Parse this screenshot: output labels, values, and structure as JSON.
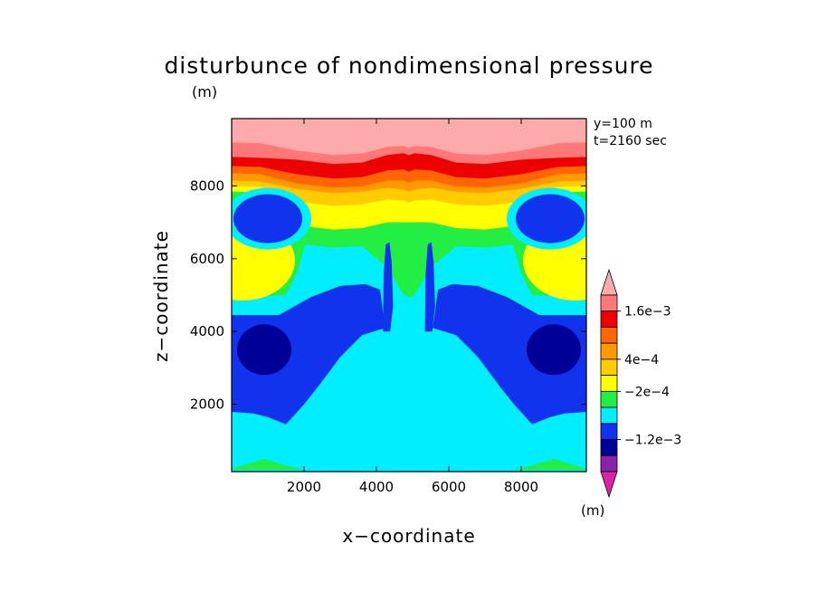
{
  "chart_data": {
    "type": "heatmap",
    "title": "disturbunce of nondimensional pressure",
    "xlabel": "x−coordinate",
    "ylabel": "z−coordinate",
    "y_unit": "(m)",
    "info": [
      "y=100 m",
      "t=2160 sec"
    ],
    "xlim": [
      0,
      9800
    ],
    "ylim": [
      150,
      9850
    ],
    "x_ticks": [
      2000,
      4000,
      6000,
      8000
    ],
    "y_ticks": [
      2000,
      4000,
      6000,
      8000
    ],
    "x_tick_labels": [
      "2000",
      "4000",
      "6000",
      "8000"
    ],
    "y_tick_labels": [
      "2000",
      "4000",
      "6000",
      "8000"
    ],
    "colorbar": {
      "unit": "(m)",
      "levels": [
        -0.0016,
        -0.0012,
        -0.0008,
        -0.0004,
        -0.0002,
        0,
        0.0004,
        0.0008,
        0.0012,
        0.0016,
        0.002
      ],
      "colors": [
        "#dd22aa",
        "#8822aa",
        "#000099",
        "#1133ee",
        "#00eeff",
        "#22ee44",
        "#ffff00",
        "#ffcc00",
        "#ff9900",
        "#ff6600",
        "#ee0000",
        "#ff7777",
        "#ffaaaa"
      ],
      "labels": [
        {
          "text": "1.6e−3",
          "value": 0.0016
        },
        {
          "text": "4e−4",
          "value": 0.0004
        },
        {
          "text": "−2e−4",
          "value": -0.0002
        },
        {
          "text": "−1.2e−3",
          "value": -0.0012
        }
      ]
    },
    "bands_top_to_bottom": [
      {
        "color": "#ffaaaa",
        "z_bottom": {
          "edge": 9200,
          "bump": 8850,
          "center": 9100
        }
      },
      {
        "color": "#ff7777",
        "z_bottom": {
          "edge": 8800,
          "bump": 8600,
          "center": 8900
        }
      },
      {
        "color": "#ee0000",
        "z_bottom": {
          "edge": 8550,
          "bump": 8200,
          "center": 8450
        }
      },
      {
        "color": "#ff6600",
        "z_bottom": {
          "edge": 8350,
          "bump": 7950,
          "center": 8150
        }
      },
      {
        "color": "#ff9900",
        "z_bottom": {
          "edge": 8150,
          "bump": 7800,
          "center": 7900
        }
      },
      {
        "color": "#ffcc00",
        "z_bottom": {
          "edge": 8000,
          "bump": 7450,
          "center": 7600
        }
      },
      {
        "color": "#ffff00",
        "z_bottom": {
          "edge": 7850,
          "bump": 6800,
          "center": 7000
        }
      },
      {
        "color": "#22ee44",
        "z_bottom": {
          "edge": 7000,
          "bump": 6300,
          "center": 5000
        }
      }
    ]
  }
}
